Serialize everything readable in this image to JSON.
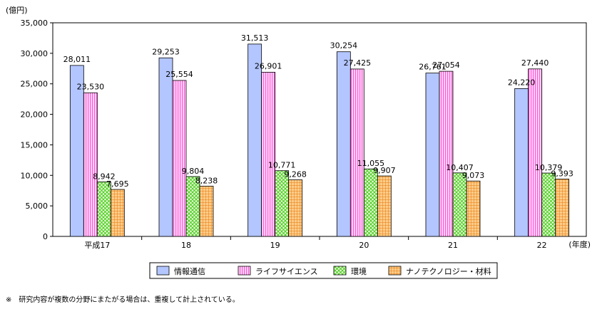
{
  "chart_data": {
    "type": "bar",
    "y_unit_label": "(億円)",
    "x_unit_label": "(年度)",
    "categories": [
      "平成17",
      "18",
      "19",
      "20",
      "21",
      "22"
    ],
    "series": [
      {
        "name": "情報通信",
        "values": [
          28011,
          29253,
          31513,
          30254,
          26761,
          24220
        ],
        "value_labels": [
          "28,011",
          "29,253",
          "31,513",
          "30,254",
          "26,761",
          "24,220"
        ],
        "color": "#b3c6ff",
        "pattern": "solid"
      },
      {
        "name": "ライフサイエンス",
        "values": [
          23530,
          25554,
          26901,
          27425,
          27054,
          27440
        ],
        "value_labels": [
          "23,530",
          "25,554",
          "26,901",
          "27,425",
          "27,054",
          "27,440"
        ],
        "color": "#ff66dd",
        "pattern": "vertical-lines"
      },
      {
        "name": "環境",
        "values": [
          8942,
          9804,
          10771,
          11055,
          10407,
          10379
        ],
        "value_labels": [
          "8,942",
          "9,804",
          "10,771",
          "11,055",
          "10,407",
          "10,379"
        ],
        "color": "#66dd33",
        "pattern": "crosshatch"
      },
      {
        "name": "ナノテクノロジー・材料",
        "values": [
          7695,
          8238,
          9268,
          9907,
          9073,
          9393
        ],
        "value_labels": [
          "7,695",
          "8,238",
          "9,268",
          "9,907",
          "9,073",
          "9,393"
        ],
        "color": "#ff9933",
        "pattern": "grid"
      }
    ],
    "ylim": [
      0,
      35000
    ],
    "y_ticks": [
      0,
      5000,
      10000,
      15000,
      20000,
      25000,
      30000,
      35000
    ],
    "y_tick_labels": [
      "0",
      "5,000",
      "10,000",
      "15,000",
      "20,000",
      "25,000",
      "30,000",
      "35,000"
    ],
    "grid": false,
    "legend_position": "bottom"
  },
  "footnote": "※　研究内容が複数の分野にまたがる場合は、重複して計上されている。"
}
